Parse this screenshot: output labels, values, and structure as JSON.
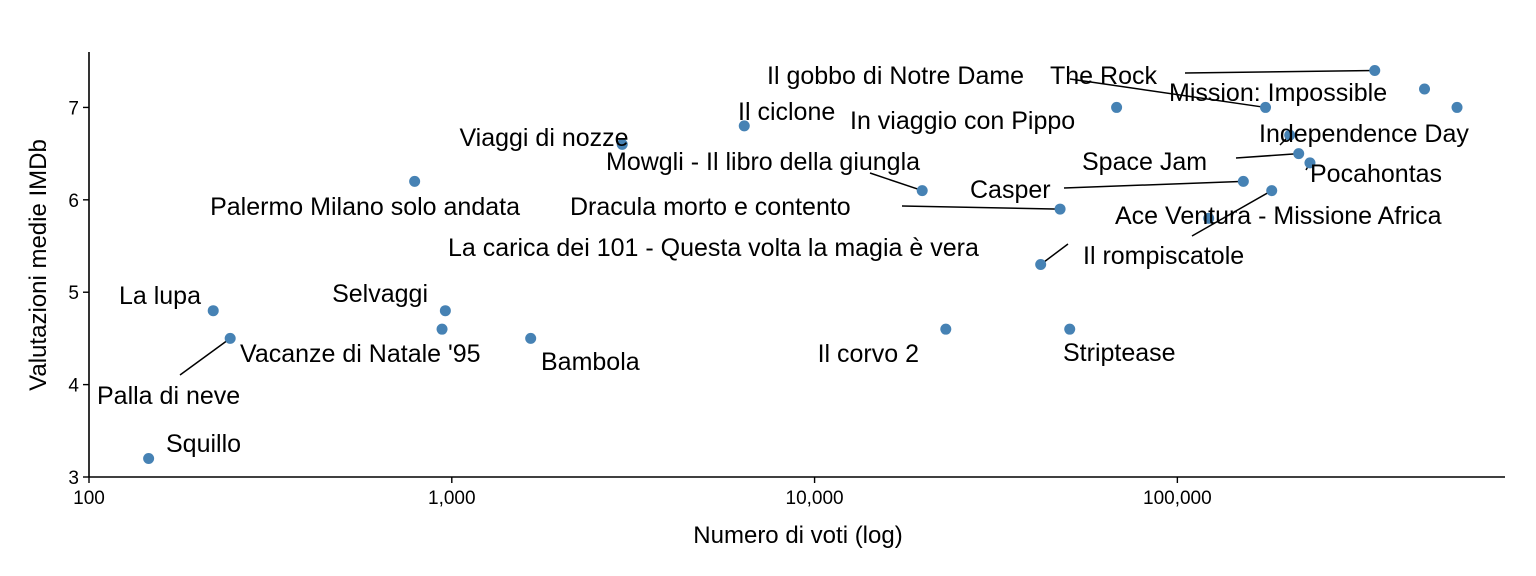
{
  "chart_data": {
    "type": "scatter",
    "xlabel": "Numero di voti (log)",
    "ylabel": "Valutazioni medie IMDb",
    "x_scale": "log10",
    "xlim": [
      100,
      800000
    ],
    "ylim": [
      3,
      7.6
    ],
    "x_ticks": [
      100,
      1000,
      10000,
      100000
    ],
    "x_tick_labels": [
      "100",
      "1,000",
      "10,000",
      "100,000"
    ],
    "y_ticks": [
      3,
      4,
      5,
      6,
      7
    ],
    "y_tick_labels": [
      "3",
      "4",
      "5",
      "6",
      "7"
    ],
    "grid": false,
    "point_color": "#4682B4",
    "points": [
      {
        "label": "Squillo",
        "x": 146,
        "y": 3.2
      },
      {
        "label": "La lupa",
        "x": 220,
        "y": 4.8
      },
      {
        "label": "Palla di neve",
        "x": 245,
        "y": 4.5
      },
      {
        "label": "Palermo Milano solo andata",
        "x": 790,
        "y": 6.2
      },
      {
        "label": "Selvaggi",
        "x": 960,
        "y": 4.8
      },
      {
        "label": "Vacanze di Natale '95",
        "x": 940,
        "y": 4.6
      },
      {
        "label": "Bambola",
        "x": 1650,
        "y": 4.5
      },
      {
        "label": "Viaggi di nozze",
        "x": 2950,
        "y": 6.6
      },
      {
        "label": "Il ciclone",
        "x": 6400,
        "y": 6.8
      },
      {
        "label": "Mowgli - Il libro della giungla",
        "x": 19800,
        "y": 6.1
      },
      {
        "label": "Il corvo 2",
        "x": 23000,
        "y": 4.6
      },
      {
        "label": "La carica dei 101 - Questa volta la magia è vera",
        "x": 42000,
        "y": 5.3
      },
      {
        "label": "Dracula morto e contento",
        "x": 47500,
        "y": 5.9
      },
      {
        "label": "Striptease",
        "x": 50500,
        "y": 4.6
      },
      {
        "label": "In viaggio con Pippo",
        "x": 68000,
        "y": 7.0
      },
      {
        "label": "Ace Ventura - Missione Africa",
        "x": 122000,
        "y": 5.8
      },
      {
        "label": "Casper",
        "x": 152000,
        "y": 6.2
      },
      {
        "label": "Il gobbo di Notre Dame",
        "x": 175000,
        "y": 7.0
      },
      {
        "label": "Il rompiscatole",
        "x": 182000,
        "y": 6.1
      },
      {
        "label": "Independence Day",
        "x": 204000,
        "y": 6.7
      },
      {
        "label": "Space Jam",
        "x": 216000,
        "y": 6.5
      },
      {
        "label": "Pocahontas",
        "x": 232000,
        "y": 6.4
      },
      {
        "label": "The Rock",
        "x": 350000,
        "y": 7.4
      },
      {
        "label": "Mission: Impossible",
        "x": 480000,
        "y": 7.2
      },
      {
        "label": "",
        "x": 590000,
        "y": 7.0
      }
    ]
  }
}
